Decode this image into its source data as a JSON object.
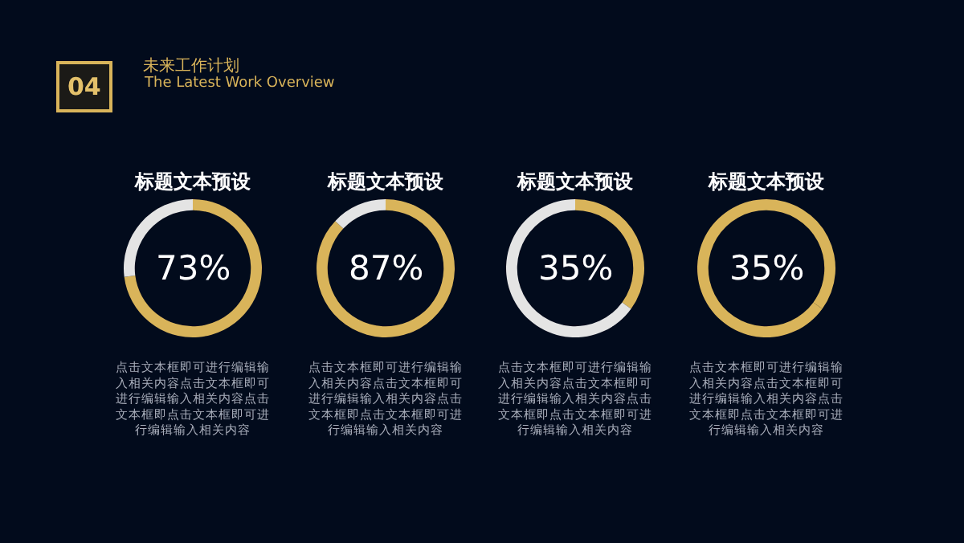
{
  "chart_data": [
    {
      "type": "other",
      "annotations": [
        "04",
        "未来工作计划",
        "The Latest Work Overview"
      ]
    },
    {
      "type": "donut",
      "title": "标题文本预设",
      "categories": [
        null,
        null
      ],
      "values": [
        73,
        27
      ],
      "colors": [
        "#d9b45a",
        "#e4e4e4"
      ],
      "annotations": [
        "73%",
        "点击文本框即可进行编辑输入相关内容点击文本框即可进行编辑输入相关内容点击文本框即点击文本框即可进行编辑输入相关内容"
      ]
    },
    {
      "type": "donut",
      "title": "标题文本预设",
      "categories": [
        null,
        null
      ],
      "values": [
        87,
        13
      ],
      "colors": [
        "#d9b45a",
        "#e4e4e4"
      ],
      "annotations": [
        "87%",
        "点击文本框即可进行编辑输入相关内容点击文本框即可进行编辑输入相关内容点击文本框即点击文本框即可进行编辑输入相关内容"
      ]
    },
    {
      "type": "donut",
      "title": "标题文本预设",
      "categories": [
        null,
        null
      ],
      "values": [
        35,
        65
      ],
      "colors": [
        "#d9b45a",
        "#e4e4e4"
      ],
      "annotations": [
        "35%",
        "点击文本框即可进行编辑输入相关内容点击文本框即可进行编辑输入相关内容点击文本框即点击文本框即可进行编辑输入相关内容"
      ]
    },
    {
      "type": "donut",
      "title": "标题文本预设",
      "categories": [
        null,
        null
      ],
      "values": [
        35,
        65
      ],
      "colors": [
        "#d9b45a",
        "#d9b45a"
      ],
      "annotations": [
        "35%",
        "点击文本框即可进行编辑输入相关内容点击文本框即可进行编辑输入相关内容点击文本框即点击文本框即可进行编辑输入相关内容"
      ]
    }
  ]
}
